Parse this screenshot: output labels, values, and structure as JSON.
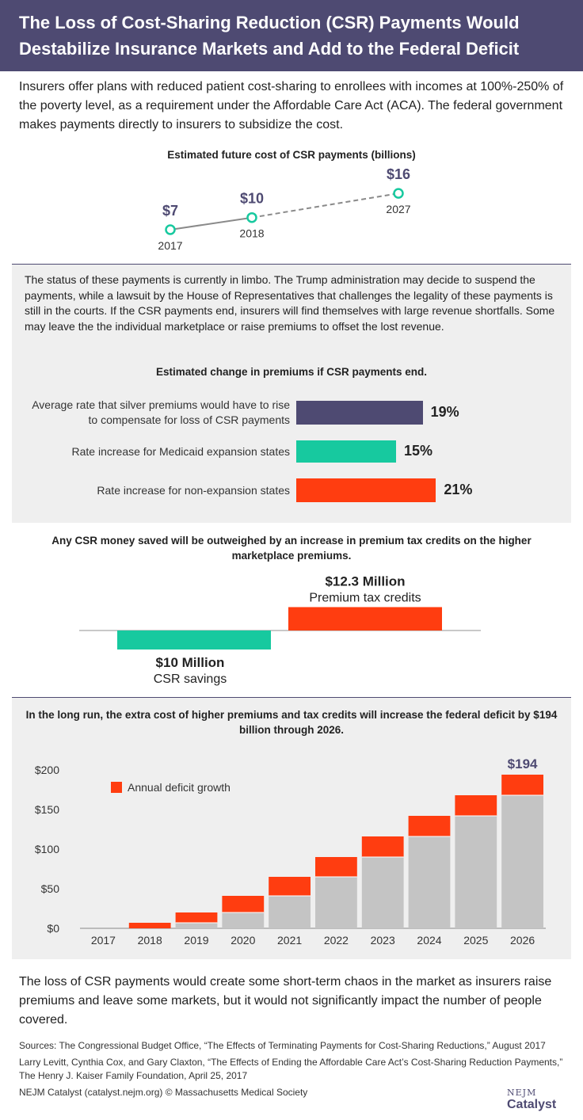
{
  "header": {
    "title": "The Loss of Cost-Sharing Reduction (CSR) Payments Would Destabilize Insurance Markets and Add to the Federal Deficit"
  },
  "intro": "Insurers offer plans with reduced patient cost-sharing to enrollees with incomes at 100%-250% of the poverty level, as a requirement under the Affordable Care Act (ACA). The federal government makes payments directly to insurers to subsidize the cost.",
  "status_text": "The status of these payments is currently in limbo. The Trump administration may decide to suspend the payments, while a lawsuit by the House of Representatives that challenges the legality of these payments is still in the courts. If the CSR payments end, insurers will find themselves with large revenue shortfalls. Some may leave the the individual marketplace or raise premiums to offset the lost revenue.",
  "conclusion": "The loss of CSR payments would create some short-term chaos in the market as insurers raise premiums and leave some markets, but it would not significantly impact the number of people covered.",
  "sources": {
    "line1": "Sources: The Congressional Budget Office, “The Effects of Terminating Payments for Cost-Sharing Reductions,” August 2017",
    "line2": "Larry Levitt, Cynthia Cox, and Gary Claxton, “The Effects of Ending the Affordable Care Act’s Cost-Sharing Reduction Payments,” The Henry J. Kaiser Family Foundation, April 25, 2017",
    "line3": "NEJM Catalyst (catalyst.nejm.org) © Massachusetts Medical Society"
  },
  "logo": {
    "line1": "NEJM",
    "line2": "Catalyst"
  },
  "colors": {
    "purple": "#4e4a72",
    "teal": "#17c99f",
    "orange": "#ff3d10",
    "gray": "#c4c4c4"
  },
  "chart_data": [
    {
      "type": "line",
      "title": "Estimated future cost of CSR payments (billions)",
      "points": [
        {
          "x": "2017",
          "label": "$7",
          "value": 7,
          "style": "solid"
        },
        {
          "x": "2018",
          "label": "$10",
          "value": 10,
          "style": "solid"
        },
        {
          "x": "2027",
          "label": "$16",
          "value": 16,
          "style": "dashed"
        }
      ]
    },
    {
      "type": "bar",
      "orientation": "horizontal",
      "title": "Estimated change in premiums if CSR payments end.",
      "categories": [
        "Average rate that silver premiums would have to rise to compensate for loss of CSR payments",
        "Rate increase for Medicaid expansion states",
        "Rate increase for non-expansion states"
      ],
      "values": [
        19,
        15,
        21
      ],
      "value_labels": [
        "19%",
        "15%",
        "21%"
      ]
    },
    {
      "type": "bar",
      "title": "Any CSR money saved will be outweighed by an increase in premium tax credits on the higher marketplace premiums.",
      "bars": [
        {
          "value_label": "$10 Million",
          "name": "CSR savings",
          "value": -10
        },
        {
          "value_label": "$12.3 Million",
          "name": "Premium tax credits",
          "value": 12.3
        }
      ]
    },
    {
      "type": "bar",
      "stacked": true,
      "title": "In the long run, the extra cost of higher premiums and tax credits will increase the federal deficit by $194 billion through 2026.",
      "categories": [
        "2017",
        "2018",
        "2019",
        "2020",
        "2021",
        "2022",
        "2023",
        "2024",
        "2025",
        "2026"
      ],
      "series": [
        {
          "values": [
            0,
            0,
            7,
            20,
            41,
            65,
            90,
            116,
            142,
            168
          ]
        },
        {
          "name": "Annual deficit growth",
          "values": [
            0,
            7,
            13,
            21,
            24,
            25,
            26,
            26,
            26,
            26
          ]
        }
      ],
      "top_label": "$194",
      "ylim": [
        0,
        200
      ],
      "yticks": [
        0,
        50,
        100,
        150,
        200
      ],
      "ytick_labels": [
        "$0",
        "$50",
        "$100",
        "$150",
        "$200"
      ],
      "legend": "top-left"
    }
  ]
}
